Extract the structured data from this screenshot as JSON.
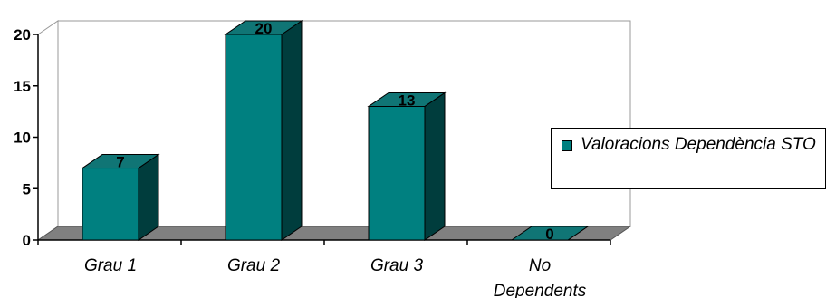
{
  "chart_data": {
    "type": "bar",
    "title": "",
    "xlabel": "",
    "ylabel": "",
    "categories": [
      "Grau 1",
      "Grau 2",
      "Grau 3",
      "No Dependents"
    ],
    "series": [
      {
        "name": "Valoracions Dependència STO",
        "values": [
          7,
          20,
          13,
          0
        ]
      }
    ],
    "ylim": [
      0,
      20
    ],
    "yticks": [
      0,
      5,
      10,
      15,
      20
    ],
    "grid": false,
    "legend": "right",
    "three_d": true,
    "colors": {
      "bar_front": "#008080",
      "bar_top": "#107575",
      "bar_side": "#003d3d",
      "floor": "#808080",
      "wall_border": "#999999",
      "legend_swatch": "#008080"
    }
  }
}
